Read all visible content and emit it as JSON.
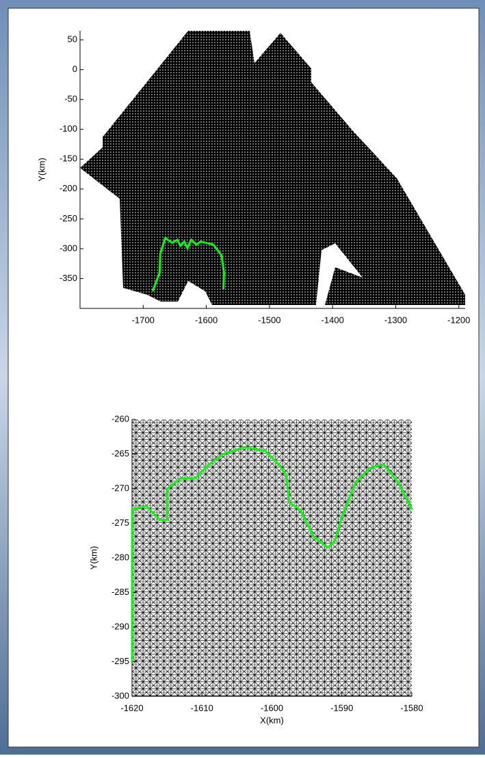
{
  "chart_data": [
    {
      "type": "line",
      "ylabel": "Y(km)",
      "xlim": [
        -1800,
        -1190
      ],
      "ylim": [
        -400,
        65
      ],
      "xticks": [
        -1700,
        -1600,
        -1500,
        -1400,
        -1300,
        -1200
      ],
      "yticks": [
        -350,
        -300,
        -250,
        -200,
        -150,
        -100,
        -50,
        0,
        50
      ],
      "color": "#00ff00",
      "x": [
        -1685,
        -1674,
        -1673,
        -1665,
        -1654,
        -1646,
        -1641,
        -1635,
        -1630,
        -1624,
        -1616,
        -1609,
        -1589,
        -1576,
        -1572,
        -1573
      ],
      "values": [
        -371,
        -340,
        -308,
        -282,
        -290,
        -285,
        -295,
        -288,
        -299,
        -285,
        -293,
        -288,
        -293,
        -311,
        -340,
        -368
      ]
    },
    {
      "type": "line",
      "xlabel": "X(km)",
      "ylabel": "Y(km)",
      "xlim": [
        -1620,
        -1580
      ],
      "ylim": [
        -300,
        -260
      ],
      "xticks": [
        -1620,
        -1610,
        -1600,
        -1590,
        -1580
      ],
      "yticks": [
        -300,
        -295,
        -290,
        -285,
        -280,
        -275,
        -270,
        -265,
        -260
      ],
      "color": "#00ff00",
      "x": [
        -1620,
        -1620,
        -1618,
        -1617,
        -1616,
        -1615,
        -1615,
        -1613,
        -1611,
        -1609,
        -1607,
        -1604,
        -1601,
        -1599,
        -1598,
        -1597.5,
        -1596,
        -1594,
        -1592,
        -1591,
        -1590,
        -1588,
        -1586,
        -1584,
        -1582,
        -1580
      ],
      "values": [
        -295,
        -273,
        -272.5,
        -273.5,
        -274.5,
        -274.5,
        -270,
        -268.5,
        -268.5,
        -266.5,
        -265,
        -264,
        -264.5,
        -266.5,
        -268,
        -272,
        -273,
        -277,
        -278.5,
        -277.5,
        -274,
        -269,
        -267,
        -266.5,
        -269,
        -273
      ]
    }
  ]
}
